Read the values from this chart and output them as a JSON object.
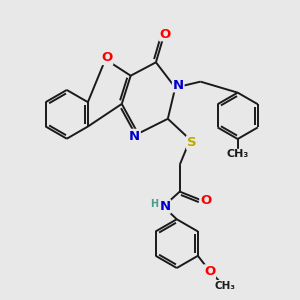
{
  "bg_color": "#e8e8e8",
  "bond_color": "#1a1a1a",
  "bond_width": 1.4,
  "atom_colors": {
    "O": "#ff0000",
    "N": "#0000cc",
    "S": "#bbaa00",
    "H": "#4a9a8a",
    "C": "#1a1a1a"
  },
  "font_size": 8.5,
  "fig_size": [
    3.0,
    3.0
  ],
  "dpi": 100,
  "xlim": [
    0,
    10
  ],
  "ylim": [
    0,
    10
  ]
}
